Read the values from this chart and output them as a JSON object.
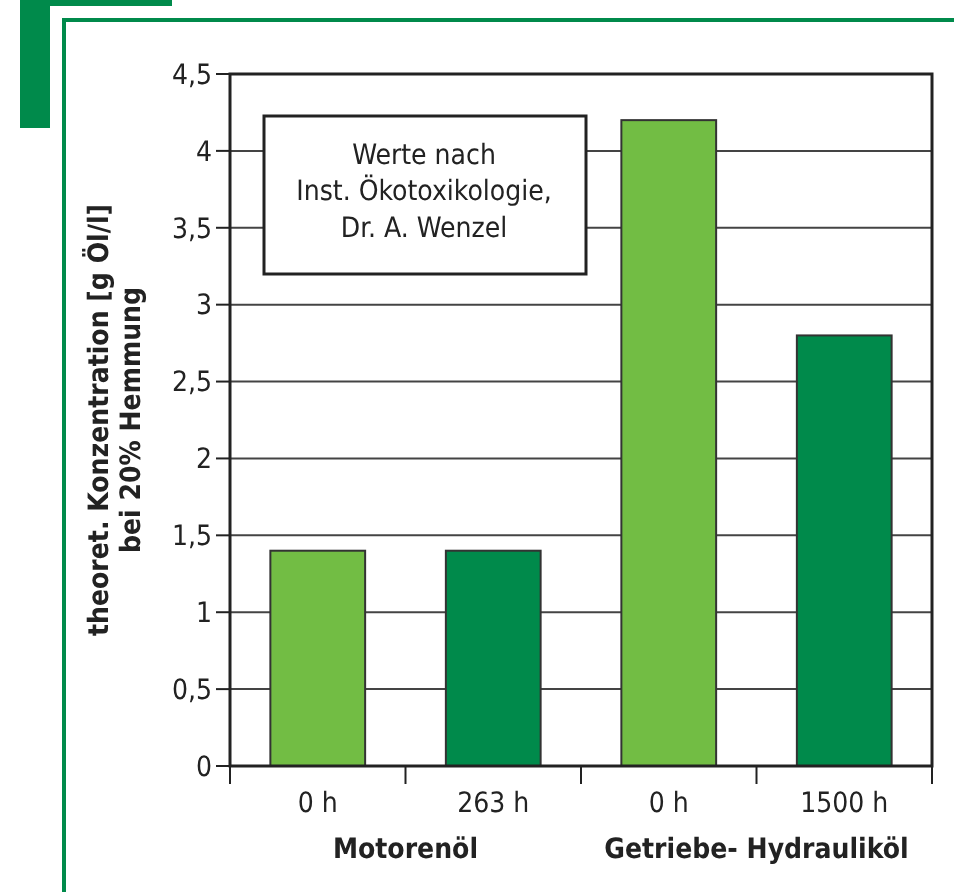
{
  "chart_data": {
    "type": "bar",
    "ylabel": "theoret. Konzentration [g Öl/l]\nbei 20% Hemmung",
    "categories": [
      "0 h",
      "263 h",
      "0 h",
      "1500 h"
    ],
    "values": [
      1.4,
      1.4,
      4.2,
      2.8
    ],
    "colors": [
      "#72bd44",
      "#008a4b",
      "#72bd44",
      "#008a4b"
    ],
    "ylim": [
      0,
      4.5
    ],
    "yticks": [
      0,
      {
        "value": 0.5,
        "label": "0,5"
      },
      1,
      {
        "value": 1.5,
        "label": "1,5"
      },
      2,
      {
        "value": 2.5,
        "label": "2,5"
      },
      3,
      {
        "value": 3.5,
        "label": "3,5"
      },
      4,
      {
        "value": 4.5,
        "label": "4,5"
      }
    ],
    "grid": "y",
    "annotations": [
      "Werte nach\nInst. Ökotoxikologie,\nDr. A. Wenzel",
      "Motorenöl",
      "Getriebe- Hydrauliköl"
    ]
  }
}
